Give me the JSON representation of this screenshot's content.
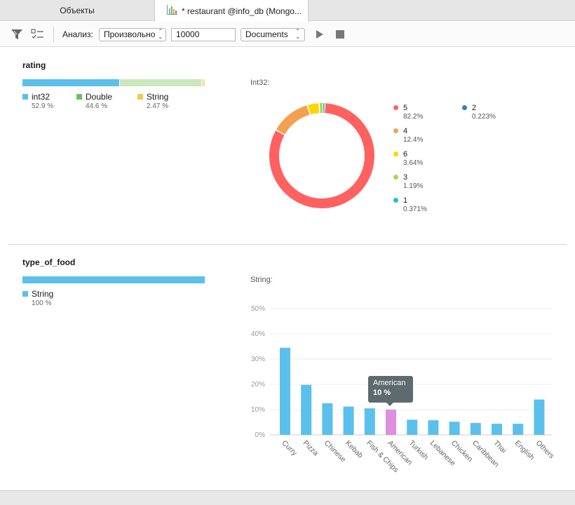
{
  "tabs": [
    {
      "label": "Объекты"
    },
    {
      "label": "* restaurant @info_db (Mongo..."
    }
  ],
  "toolbar": {
    "analysis_label": "Анализ:",
    "mode_value": "Произвольно",
    "limit_value": "10000",
    "collection_value": "Documents",
    "icons": [
      "filter-icon",
      "checklist-icon",
      "play-icon",
      "stop-icon"
    ]
  },
  "rating": {
    "title": "rating",
    "types": [
      {
        "name": "int32",
        "pct": "52.9 %",
        "fraction": 0.529,
        "color": "#5bc0eb"
      },
      {
        "name": "Double",
        "pct": "44.6 %",
        "fraction": 0.446,
        "color": "#c9e8bd"
      },
      {
        "name": "String",
        "pct": "2.47 %",
        "fraction": 0.0247,
        "color": "#f6e2a8"
      }
    ],
    "legend_colors": [
      "#5bc0eb",
      "#62c462",
      "#f2c94c"
    ],
    "sub_title": "Int32:"
  },
  "type_of_food": {
    "title": "type_of_food",
    "types": [
      {
        "name": "String",
        "pct": "100 %",
        "fraction": 1.0,
        "color": "#5bc0eb"
      }
    ],
    "sub_title": "String:"
  },
  "chart_data": [
    {
      "type": "pie",
      "title": "Int32:",
      "categories": [
        "5",
        "4",
        "6",
        "3",
        "1",
        "2"
      ],
      "values": [
        82.2,
        12.4,
        3.64,
        1.19,
        0.371,
        0.223
      ],
      "labels": [
        "82.2%",
        "12.4%",
        "3.64%",
        "1.19%",
        "0.371%",
        "0.223%"
      ],
      "colors": [
        "#ff6161",
        "#f5a04f",
        "#ffd500",
        "#a8d84a",
        "#20c0cc",
        "#2f7fc7"
      ],
      "donut": true
    },
    {
      "type": "bar",
      "title": "String:",
      "categories": [
        "Curry",
        "Pizza",
        "Chinese",
        "Kebab",
        "Fish & Chips",
        "American",
        "Turkish",
        "Lebanese",
        "Chicken",
        "Caribbean",
        "Thai",
        "English",
        "Others"
      ],
      "values": [
        34.5,
        19.8,
        12.5,
        11.2,
        10.5,
        10.0,
        6.0,
        5.8,
        5.2,
        4.7,
        4.4,
        4.4,
        14.0
      ],
      "ylim": [
        0,
        50
      ],
      "yticks": [
        "0%",
        "10%",
        "20%",
        "30%",
        "40%",
        "50%"
      ],
      "grid": true,
      "bar_color": "#5bc0eb",
      "highlight_color": "#dd8fe0",
      "highlight_index": 5,
      "tooltip": {
        "name": "American",
        "value": "10 %"
      }
    }
  ]
}
